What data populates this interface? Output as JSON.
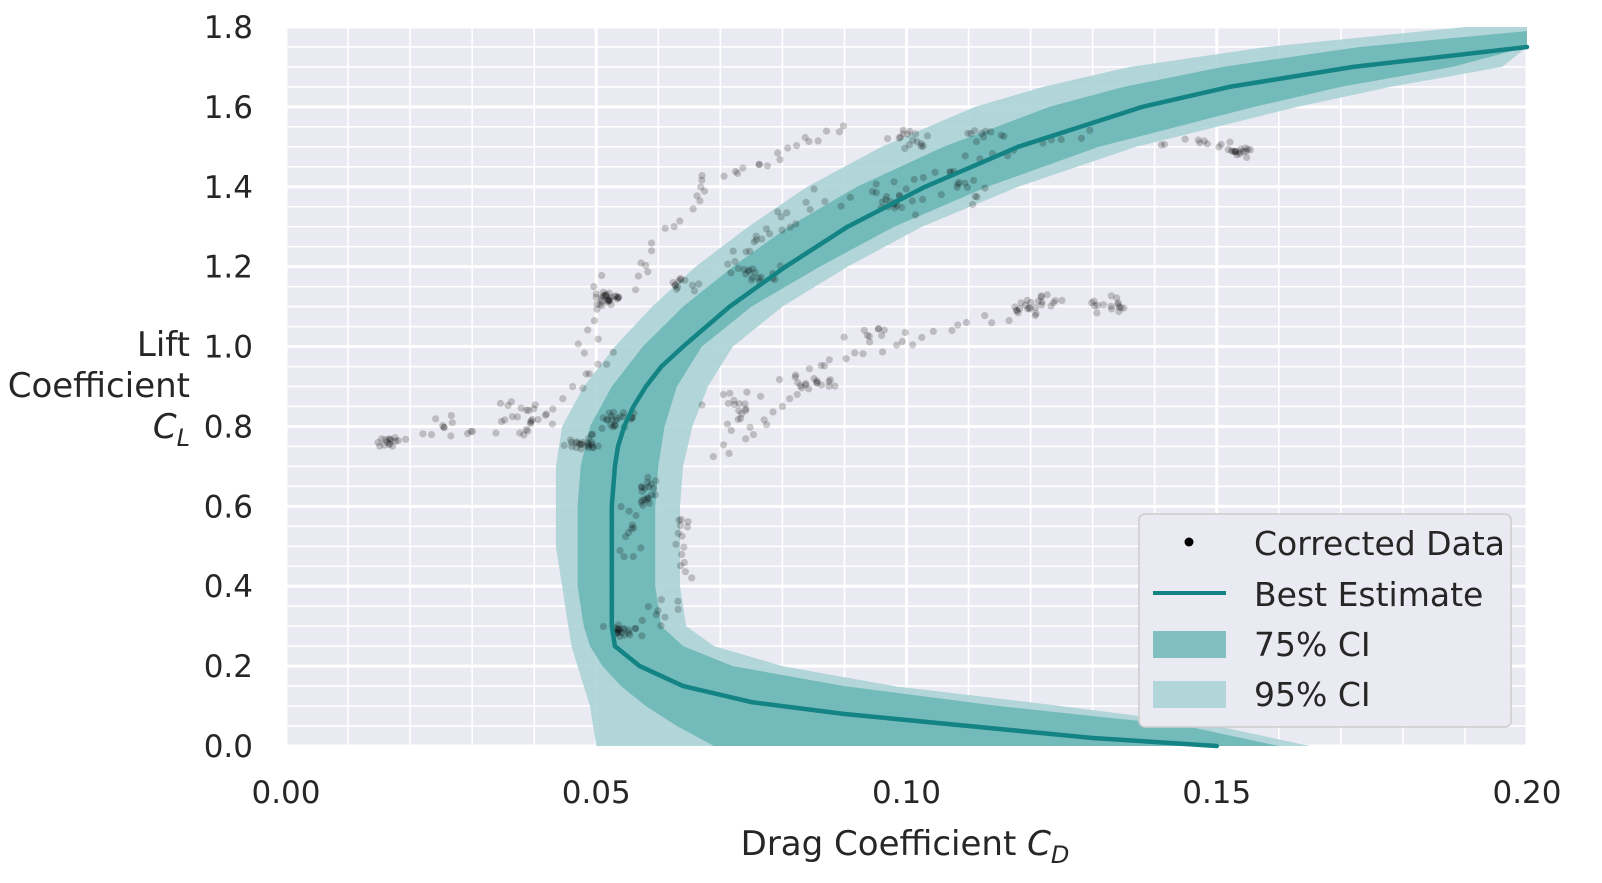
{
  "chart_data": {
    "type": "scatter",
    "title": "",
    "xlabel": "Drag Coefficient",
    "xlabel_symbol": "C",
    "xlabel_sub": "D",
    "ylabel_lines": [
      "Lift",
      "Coefficient"
    ],
    "ylabel_symbol": "C",
    "ylabel_sub": "L",
    "xlim": [
      0.0,
      0.2
    ],
    "ylim": [
      0.0,
      1.8
    ],
    "xticks": [
      "0.00",
      "0.05",
      "0.10",
      "0.15",
      "0.20"
    ],
    "yticks": [
      "0.0",
      "0.2",
      "0.4",
      "0.6",
      "0.8",
      "1.0",
      "1.2",
      "1.4",
      "1.6",
      "1.8"
    ],
    "grid": true,
    "legend_position": "bottom-right",
    "colors": {
      "background": "#eaeaf2",
      "grid": "#ffffff",
      "best_estimate": "#138383",
      "ci75": "#5fb0b0",
      "ci95": "#a7d1d3",
      "points": "#000000"
    },
    "series": [
      {
        "name": "Best Estimate",
        "kind": "line",
        "cl": [
          0.0,
          0.02,
          0.05,
          0.08,
          0.11,
          0.15,
          0.2,
          0.25,
          0.3,
          0.4,
          0.5,
          0.6,
          0.7,
          0.75,
          0.8,
          0.85,
          0.9,
          0.95,
          1.0,
          1.1,
          1.2,
          1.3,
          1.4,
          1.5,
          1.6,
          1.65,
          1.7,
          1.75
        ],
        "cd": [
          0.15,
          0.13,
          0.11,
          0.09,
          0.075,
          0.064,
          0.057,
          0.053,
          0.0525,
          0.0525,
          0.0525,
          0.0525,
          0.053,
          0.0535,
          0.0545,
          0.056,
          0.058,
          0.0605,
          0.064,
          0.0715,
          0.0805,
          0.0905,
          0.103,
          0.118,
          0.138,
          0.152,
          0.172,
          0.2
        ]
      },
      {
        "name": "75% CI",
        "kind": "band",
        "cl": [
          0.0,
          0.05,
          0.1,
          0.15,
          0.2,
          0.25,
          0.3,
          0.4,
          0.5,
          0.6,
          0.7,
          0.8,
          0.9,
          1.0,
          1.1,
          1.2,
          1.3,
          1.4,
          1.5,
          1.6,
          1.65,
          1.7,
          1.75,
          1.79
        ],
        "cd_lower": [
          0.069,
          0.063,
          0.058,
          0.054,
          0.051,
          0.049,
          0.048,
          0.047,
          0.047,
          0.047,
          0.0475,
          0.049,
          0.0525,
          0.0575,
          0.064,
          0.072,
          0.081,
          0.092,
          0.106,
          0.123,
          0.135,
          0.151,
          0.173,
          0.2
        ],
        "cd_upper": [
          0.16,
          0.145,
          0.115,
          0.09,
          0.072,
          0.064,
          0.0605,
          0.0595,
          0.0595,
          0.0595,
          0.06,
          0.061,
          0.063,
          0.067,
          0.075,
          0.086,
          0.098,
          0.113,
          0.131,
          0.156,
          0.17,
          0.188,
          0.2,
          0.2
        ]
      },
      {
        "name": "95% CI",
        "kind": "band",
        "cl": [
          0.0,
          0.05,
          0.1,
          0.15,
          0.2,
          0.25,
          0.3,
          0.4,
          0.5,
          0.6,
          0.7,
          0.8,
          0.9,
          1.0,
          1.1,
          1.2,
          1.3,
          1.4,
          1.5,
          1.6,
          1.65,
          1.7,
          1.75,
          1.8
        ],
        "cd_lower": [
          0.05,
          0.0495,
          0.049,
          0.048,
          0.047,
          0.046,
          0.0455,
          0.0445,
          0.0435,
          0.0435,
          0.0435,
          0.0445,
          0.048,
          0.053,
          0.059,
          0.066,
          0.0745,
          0.084,
          0.096,
          0.111,
          0.122,
          0.136,
          0.158,
          0.19
        ],
        "cd_upper": [
          0.165,
          0.15,
          0.125,
          0.098,
          0.08,
          0.069,
          0.0645,
          0.0635,
          0.0635,
          0.0635,
          0.064,
          0.0655,
          0.068,
          0.072,
          0.08,
          0.0905,
          0.1025,
          0.118,
          0.137,
          0.163,
          0.178,
          0.196,
          0.2,
          0.2
        ]
      },
      {
        "name": "Corrected Data",
        "kind": "points",
        "clusters": [
          {
            "cd": 0.052,
            "cl": 1.12,
            "n": 26,
            "sx": 0.0014,
            "sy": 0.012
          },
          {
            "cd": 0.048,
            "cl": 0.76,
            "n": 24,
            "sx": 0.0025,
            "sy": 0.015
          },
          {
            "cd": 0.053,
            "cl": 0.82,
            "n": 22,
            "sx": 0.002,
            "sy": 0.018
          },
          {
            "cd": 0.058,
            "cl": 0.64,
            "n": 20,
            "sx": 0.0012,
            "sy": 0.03
          },
          {
            "cd": 0.054,
            "cl": 0.29,
            "n": 20,
            "sx": 0.002,
            "sy": 0.012
          },
          {
            "cd": 0.017,
            "cl": 0.76,
            "n": 16,
            "sx": 0.0015,
            "sy": 0.012
          },
          {
            "cd": 0.037,
            "cl": 0.82,
            "n": 24,
            "sx": 0.003,
            "sy": 0.03
          },
          {
            "cd": 0.027,
            "cl": 0.79,
            "n": 12,
            "sx": 0.003,
            "sy": 0.02
          },
          {
            "cd": 0.154,
            "cl": 1.49,
            "n": 16,
            "sx": 0.0015,
            "sy": 0.01
          },
          {
            "cd": 0.146,
            "cl": 1.51,
            "n": 10,
            "sx": 0.004,
            "sy": 0.012
          },
          {
            "cd": 0.133,
            "cl": 1.1,
            "n": 16,
            "sx": 0.002,
            "sy": 0.018
          },
          {
            "cd": 0.12,
            "cl": 1.1,
            "n": 20,
            "sx": 0.003,
            "sy": 0.02
          },
          {
            "cd": 0.101,
            "cl": 1.52,
            "n": 16,
            "sx": 0.003,
            "sy": 0.02
          },
          {
            "cd": 0.113,
            "cl": 1.53,
            "n": 10,
            "sx": 0.003,
            "sy": 0.01
          },
          {
            "cd": 0.099,
            "cl": 1.36,
            "n": 18,
            "sx": 0.003,
            "sy": 0.025
          },
          {
            "cd": 0.109,
            "cl": 1.4,
            "n": 12,
            "sx": 0.003,
            "sy": 0.03
          },
          {
            "cd": 0.076,
            "cl": 1.18,
            "n": 16,
            "sx": 0.003,
            "sy": 0.012
          },
          {
            "cd": 0.063,
            "cl": 1.16,
            "n": 12,
            "sx": 0.003,
            "sy": 0.015
          },
          {
            "cd": 0.085,
            "cl": 0.91,
            "n": 12,
            "sx": 0.003,
            "sy": 0.01
          },
          {
            "cd": 0.073,
            "cl": 0.84,
            "n": 18,
            "sx": 0.003,
            "sy": 0.035
          },
          {
            "cd": 0.064,
            "cl": 0.48,
            "n": 14,
            "sx": 0.001,
            "sy": 0.08
          },
          {
            "cd": 0.06,
            "cl": 0.33,
            "n": 10,
            "sx": 0.0025,
            "sy": 0.03
          },
          {
            "cd": 0.056,
            "cl": 0.53,
            "n": 12,
            "sx": 0.002,
            "sy": 0.06
          },
          {
            "cd": 0.093,
            "cl": 1.03,
            "n": 10,
            "sx": 0.004,
            "sy": 0.015
          }
        ],
        "paths": [
          {
            "from": [
              0.066,
              1.4
            ],
            "to": [
              0.09,
              1.55
            ],
            "n": 20
          },
          {
            "from": [
              0.055,
              1.14
            ],
            "to": [
              0.067,
              1.4
            ],
            "n": 14
          },
          {
            "from": [
              0.079,
              0.92
            ],
            "to": [
              0.125,
              1.12
            ],
            "n": 26
          },
          {
            "from": [
              0.07,
              0.72
            ],
            "to": [
              0.086,
              0.93
            ],
            "n": 16
          },
          {
            "from": [
              0.085,
              1.35
            ],
            "to": [
              0.13,
              1.54
            ],
            "n": 22
          },
          {
            "from": [
              0.048,
              0.98
            ],
            "to": [
              0.051,
              1.18
            ],
            "n": 10
          },
          {
            "from": [
              0.043,
              0.84
            ],
            "to": [
              0.052,
              0.98
            ],
            "n": 10
          },
          {
            "from": [
              0.07,
              1.2
            ],
            "to": [
              0.085,
              1.38
            ],
            "n": 12
          },
          {
            "from": [
              0.073,
              1.22
            ],
            "to": [
              0.082,
              1.32
            ],
            "n": 8
          }
        ]
      }
    ],
    "legend": [
      "Corrected Data",
      "Best Estimate",
      "75% CI",
      "95% CI"
    ]
  }
}
